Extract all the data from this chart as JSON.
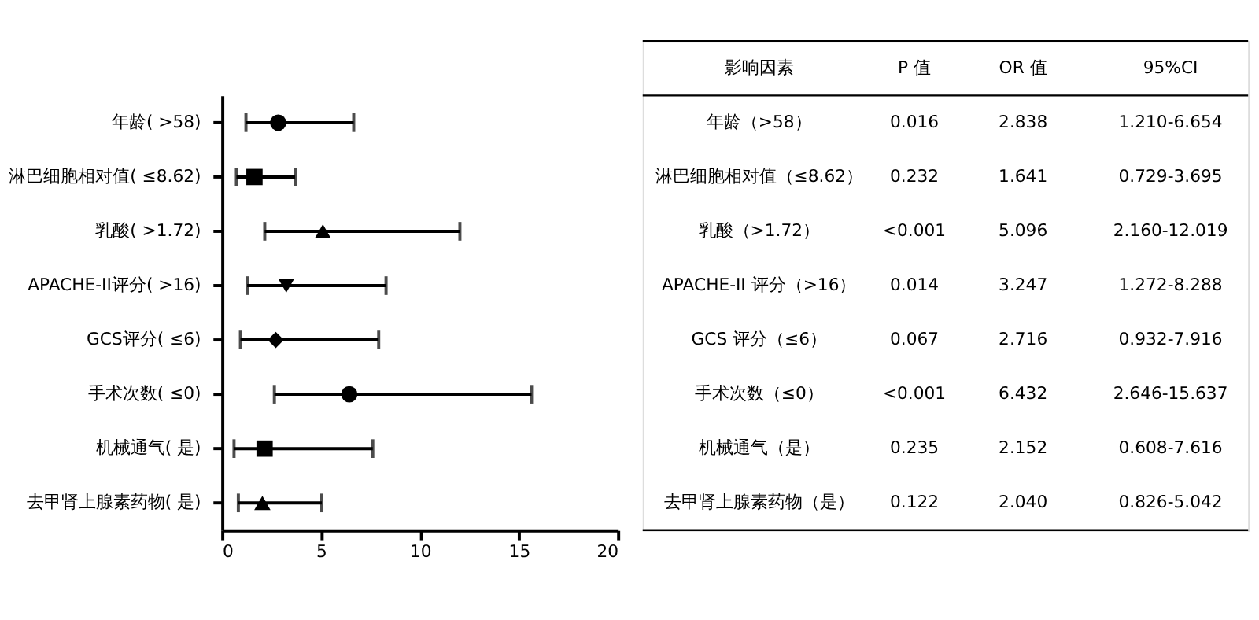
{
  "chart_data": {
    "type": "scatter",
    "orientation": "horizontal",
    "categories": [
      "年龄( >58)",
      "淋巴细胞相对值( ≤8.62)",
      "乳酸( >1.72)",
      "APACHE-II评分( >16)",
      "GCS评分( ≤6)",
      "手术次数( ≤0)",
      "机械通气( 是)",
      "去甲肾上腺素药物( 是)"
    ],
    "xlim": [
      0,
      20
    ],
    "xticks": [
      0,
      5,
      10,
      15,
      20
    ],
    "grid": false,
    "series": [
      {
        "color": "#000000",
        "marker": "circle",
        "values": [
          2.838,
          null,
          null,
          null,
          null,
          null,
          null,
          null
        ],
        "errors": [
          [
            1.21,
            6.654
          ],
          null,
          null,
          null,
          null,
          null,
          null,
          null
        ]
      },
      {
        "color": "#000000",
        "marker": "square",
        "values": [
          null,
          1.641,
          null,
          null,
          null,
          null,
          null,
          null
        ],
        "errors": [
          null,
          [
            0.729,
            3.695
          ],
          null,
          null,
          null,
          null,
          null,
          null
        ]
      },
      {
        "color": "#000000",
        "marker": "triangle",
        "values": [
          null,
          null,
          5.096,
          null,
          null,
          null,
          null,
          null
        ],
        "errors": [
          null,
          null,
          [
            2.16,
            12.019
          ],
          null,
          null,
          null,
          null,
          null
        ]
      },
      {
        "color": "#000000",
        "marker": "triangle-down",
        "values": [
          null,
          null,
          null,
          3.247,
          null,
          null,
          null,
          null
        ],
        "errors": [
          null,
          null,
          null,
          [
            1.272,
            8.288
          ],
          null,
          null,
          null,
          null
        ]
      },
      {
        "color": "#000000",
        "marker": "diamond",
        "values": [
          null,
          null,
          null,
          null,
          2.716,
          null,
          null,
          null
        ],
        "errors": [
          null,
          null,
          null,
          null,
          [
            0.932,
            7.916
          ],
          null,
          null,
          null
        ]
      },
      {
        "color": "#000000",
        "marker": "circle",
        "values": [
          null,
          null,
          null,
          null,
          null,
          6.432,
          null,
          null
        ],
        "errors": [
          null,
          null,
          null,
          null,
          null,
          [
            2.646,
            15.637
          ],
          null,
          null
        ]
      },
      {
        "color": "#000000",
        "marker": "square",
        "values": [
          null,
          null,
          null,
          null,
          null,
          null,
          2.152,
          null
        ],
        "errors": [
          null,
          null,
          null,
          null,
          null,
          null,
          [
            0.608,
            7.616
          ],
          null
        ]
      },
      {
        "color": "#000000",
        "marker": "triangle",
        "values": [
          null,
          null,
          null,
          null,
          null,
          null,
          null,
          2.04
        ],
        "errors": [
          null,
          null,
          null,
          null,
          null,
          null,
          null,
          [
            0.826,
            5.042
          ]
        ]
      }
    ],
    "annotations": [
      "影响因素",
      "P 值",
      "OR 值",
      "95%CI",
      "年龄（>58）",
      "0.016",
      "2.838",
      "1.210-6.654",
      "淋巴细胞相对值（≤8.62）",
      "0.232",
      "1.641",
      "0.729-3.695",
      "乳酸（>1.72）",
      "<0.001",
      "5.096",
      "2.160-12.019",
      "APACHE-II 评分（>16）",
      "0.014",
      "3.247",
      "1.272-8.288",
      "GCS 评分（≤6）",
      "0.067",
      "2.716",
      "0.932-7.916",
      "手术次数（≤0）",
      "<0.001",
      "6.432",
      "2.646-15.637",
      "机械通气（是）",
      "0.235",
      "2.152",
      "0.608-7.616",
      "去甲肾上腺素药物（是）",
      "0.122",
      "2.040",
      "0.826-5.042"
    ]
  }
}
